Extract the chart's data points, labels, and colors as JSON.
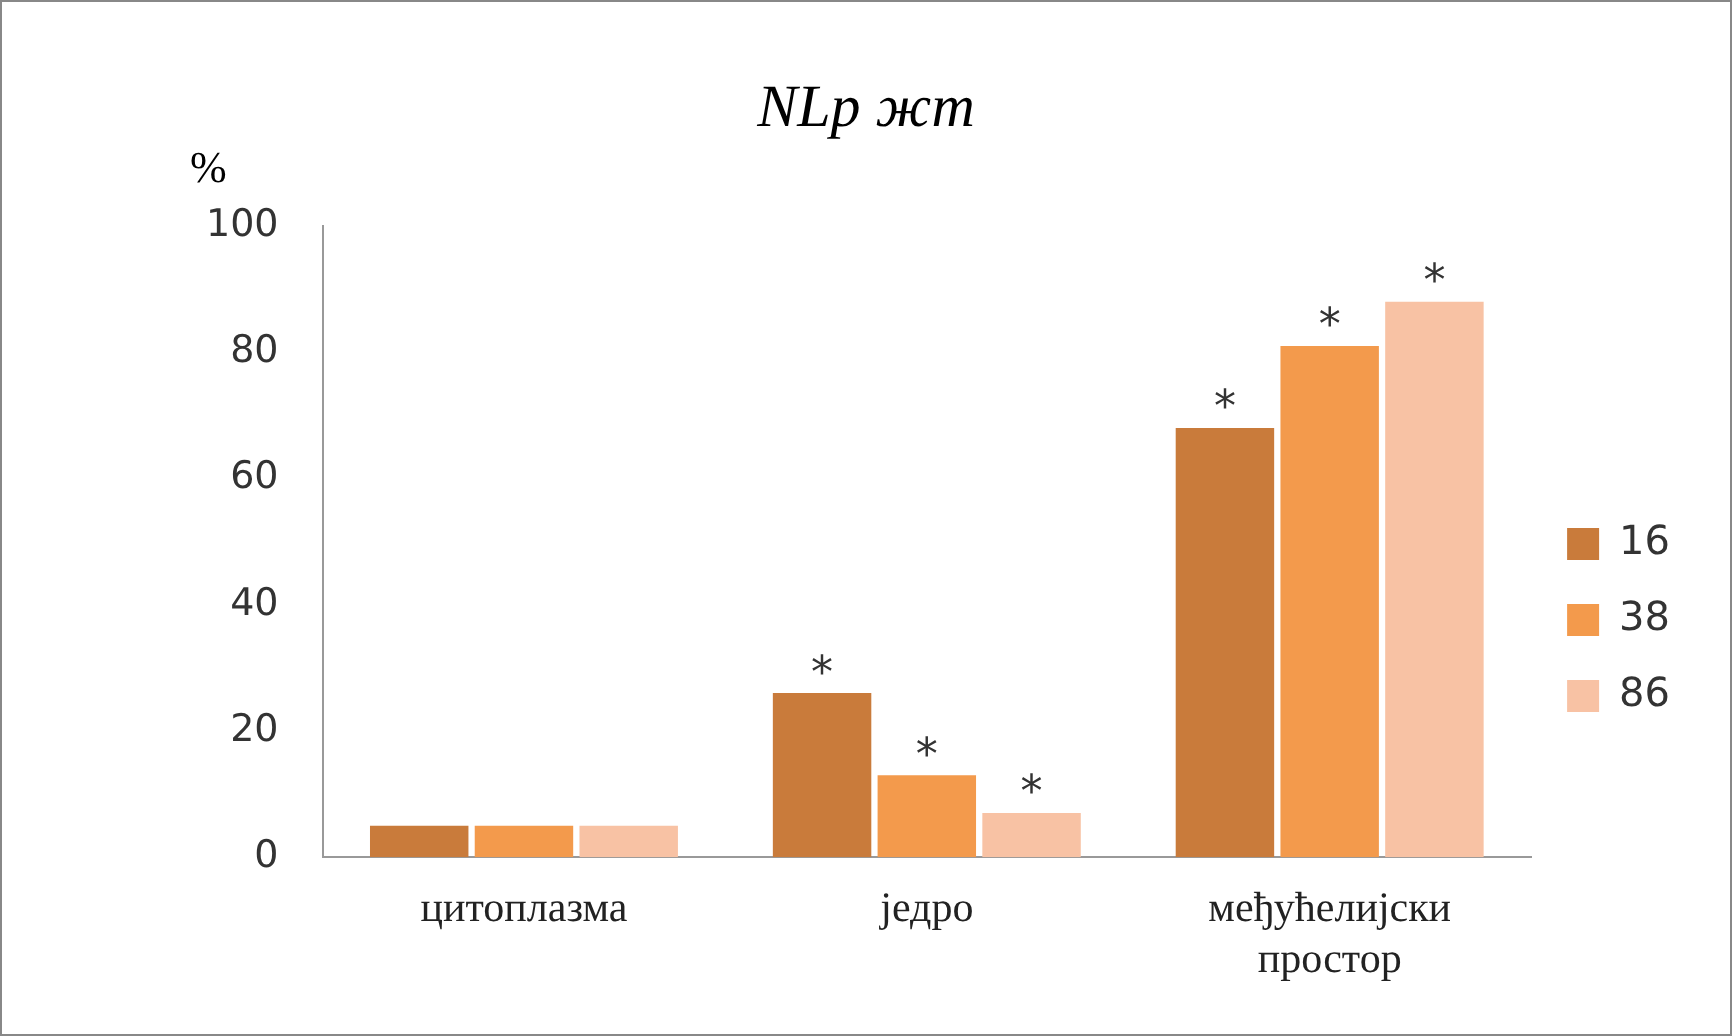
{
  "chart_data": {
    "type": "bar",
    "title": "NLp жт",
    "ylabel": "%",
    "categories": [
      "цитоплазма",
      "једро",
      "међућелијски простор"
    ],
    "series": [
      {
        "name": "16",
        "color": "#c97b3b",
        "values": [
          5,
          26,
          68
        ],
        "value_labels": [
          null,
          "*",
          "*"
        ]
      },
      {
        "name": "38",
        "color": "#f39a4c",
        "values": [
          5,
          13,
          81
        ],
        "value_labels": [
          null,
          "*",
          "*"
        ]
      },
      {
        "name": "86",
        "color": "#f8c2a4",
        "values": [
          5,
          7,
          88
        ],
        "value_labels": [
          null,
          "*",
          "*"
        ]
      }
    ],
    "ylim": [
      0,
      100
    ],
    "yticks": [
      0,
      20,
      40,
      60,
      80,
      100
    ],
    "grid": false,
    "legend": "right"
  }
}
